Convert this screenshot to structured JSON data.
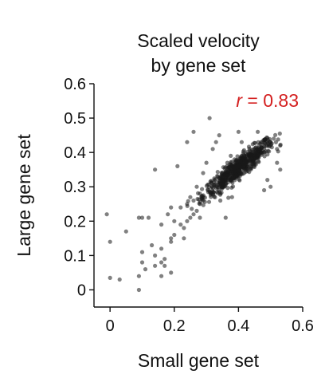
{
  "chart_data": {
    "type": "scatter",
    "title_lines": [
      "Scaled velocity",
      "by gene set"
    ],
    "xlabel": "Small gene set",
    "ylabel": "Large gene set",
    "xlim": [
      -0.05,
      0.6
    ],
    "ylim": [
      -0.05,
      0.6
    ],
    "xticks": [
      0,
      0.2,
      0.4,
      0.6
    ],
    "yticks": [
      0,
      0.1,
      0.2,
      0.3,
      0.4,
      0.5,
      0.6
    ],
    "xtick_labels": [
      "0",
      "0.2",
      "0.4",
      "0.6"
    ],
    "ytick_labels": [
      "0",
      "0.1",
      "0.2",
      "0.3",
      "0.4",
      "0.5",
      "0.6"
    ],
    "grid": false,
    "annotation": {
      "prefix": "r",
      "suffix": " = 0.83",
      "color": "#d42020"
    },
    "marker_color": "#1a1a1a",
    "points": [
      [
        -0.01,
        0.22
      ],
      [
        0.0,
        0.14
      ],
      [
        0.0,
        0.035
      ],
      [
        0.03,
        0.03
      ],
      [
        0.05,
        0.17
      ],
      [
        0.09,
        0.0
      ],
      [
        0.09,
        0.04
      ],
      [
        0.09,
        0.21
      ],
      [
        0.1,
        0.21
      ],
      [
        0.1,
        0.11
      ],
      [
        0.1,
        0.08
      ],
      [
        0.11,
        0.06
      ],
      [
        0.12,
        0.21
      ],
      [
        0.13,
        0.13
      ],
      [
        0.14,
        0.35
      ],
      [
        0.14,
        0.07
      ],
      [
        0.14,
        0.1
      ],
      [
        0.16,
        0.19
      ],
      [
        0.16,
        0.04
      ],
      [
        0.16,
        0.08
      ],
      [
        0.16,
        0.12
      ],
      [
        0.17,
        0.07
      ],
      [
        0.17,
        0.09
      ],
      [
        0.18,
        0.22
      ],
      [
        0.19,
        0.24
      ],
      [
        0.19,
        0.14
      ],
      [
        0.19,
        0.15
      ],
      [
        0.19,
        0.05
      ],
      [
        0.2,
        0.16
      ],
      [
        0.2,
        0.2
      ],
      [
        0.21,
        0.36
      ],
      [
        0.22,
        0.24
      ],
      [
        0.22,
        0.19
      ],
      [
        0.23,
        0.15
      ],
      [
        0.23,
        0.18
      ],
      [
        0.24,
        0.2
      ],
      [
        0.24,
        0.25
      ],
      [
        0.24,
        0.43
      ],
      [
        0.25,
        0.21
      ],
      [
        0.25,
        0.27
      ],
      [
        0.26,
        0.46
      ],
      [
        0.26,
        0.26
      ],
      [
        0.26,
        0.22
      ],
      [
        0.27,
        0.23
      ],
      [
        0.27,
        0.3
      ],
      [
        0.28,
        0.25
      ],
      [
        0.28,
        0.28
      ],
      [
        0.28,
        0.21
      ],
      [
        0.29,
        0.34
      ],
      [
        0.29,
        0.26
      ],
      [
        0.3,
        0.37
      ],
      [
        0.31,
        0.5
      ],
      [
        0.32,
        0.41
      ],
      [
        0.33,
        0.43
      ],
      [
        0.34,
        0.45
      ],
      [
        0.36,
        0.21
      ],
      [
        0.38,
        0.27
      ],
      [
        0.4,
        0.46
      ],
      [
        0.41,
        0.43
      ],
      [
        0.46,
        0.46
      ],
      [
        0.47,
        0.43
      ],
      [
        0.48,
        0.29
      ],
      [
        0.49,
        0.32
      ],
      [
        0.5,
        0.3
      ],
      [
        0.52,
        0.37
      ],
      [
        0.53,
        0.42
      ],
      [
        0.51,
        0.44
      ],
      [
        0.52,
        0.41
      ],
      [
        0.5,
        0.43
      ],
      [
        0.53,
        0.35
      ]
    ]
  }
}
